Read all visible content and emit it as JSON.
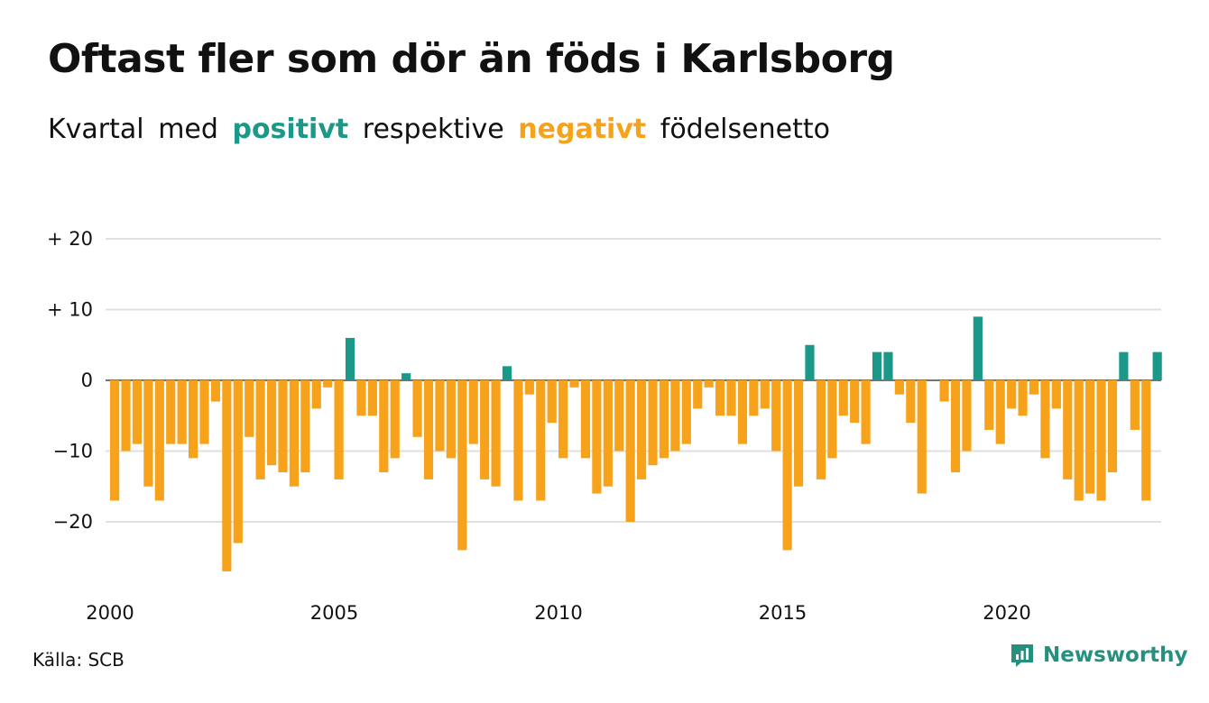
{
  "header": {
    "title": "Oftast fler som dör än föds i Karlsborg",
    "subtitle_parts": [
      "Kvartal",
      "med",
      "positivt",
      "respektive",
      "negativt",
      "födelsenetto"
    ]
  },
  "footer": {
    "source": "Källa: SCB",
    "brand": "Newsworthy",
    "brand_icon": "newsworthy-logo-icon"
  },
  "colors": {
    "positive": "#1a9988",
    "negative": "#f7a21b",
    "grid": "#e0e0e0",
    "brand": "#26907f"
  },
  "chart_data": {
    "type": "bar",
    "x_start": "2000 Q1",
    "frequency": "quarterly",
    "x_tick_labels": [
      "2000",
      "2005",
      "2010",
      "2015",
      "2020"
    ],
    "y_tick_labels": [
      "+ 20",
      "+ 10",
      "0",
      "−10",
      "−20"
    ],
    "y_ticks": [
      20,
      10,
      0,
      -10,
      -20
    ],
    "ylim": [
      -28,
      21
    ],
    "grid": true,
    "values": [
      -17,
      -10,
      -9,
      -15,
      -17,
      -9,
      -9,
      -11,
      -9,
      -3,
      -27,
      -23,
      -8,
      -14,
      -12,
      -13,
      -15,
      -13,
      -4,
      -1,
      -14,
      6,
      -5,
      -5,
      -13,
      -11,
      1,
      -8,
      -14,
      -10,
      -11,
      -24,
      -9,
      -14,
      -15,
      2,
      -17,
      -2,
      -17,
      -6,
      -11,
      -1,
      -11,
      -16,
      -15,
      -10,
      -20,
      -14,
      -12,
      -11,
      -10,
      -9,
      -4,
      -1,
      -5,
      -5,
      -9,
      -5,
      -4,
      -10,
      -24,
      -15,
      5,
      -14,
      -11,
      -5,
      -6,
      -9,
      4,
      4,
      -2,
      -6,
      -16,
      0,
      -3,
      -13,
      -10,
      9,
      -7,
      -9,
      -4,
      -5,
      -2,
      -11,
      -4,
      -14,
      -17,
      -16,
      -17,
      -13,
      4,
      -7,
      -17,
      4
    ]
  }
}
